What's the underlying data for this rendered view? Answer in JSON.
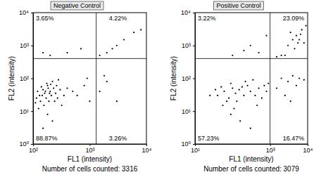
{
  "chart_data": [
    {
      "type": "scatter",
      "title": "Negative Control",
      "x_label": "FL1 (intensity)",
      "y_label": "FL2 (intensity)",
      "footer": "Number of cells counted: 3316",
      "x": [
        130,
        150,
        170,
        180,
        200,
        160,
        140,
        210,
        190,
        230,
        250,
        120,
        175,
        220,
        155,
        270,
        300,
        135,
        185,
        205,
        165,
        240,
        145,
        195,
        260,
        125,
        350,
        400,
        115,
        280,
        320,
        180,
        220,
        150,
        110,
        500,
        600,
        200,
        400,
        150,
        700,
        1500,
        2500,
        4000,
        6000,
        3000,
        8000,
        2000,
        1500,
        2000,
        3000,
        1800,
        800,
        900,
        1000
      ],
      "values": [
        30,
        45,
        25,
        60,
        40,
        35,
        55,
        30,
        20,
        50,
        35,
        40,
        70,
        80,
        15,
        25,
        45,
        20,
        50,
        65,
        40,
        20,
        30,
        35,
        60,
        12,
        30,
        50,
        25,
        90,
        15,
        8,
        5,
        3,
        18,
        40,
        30,
        500,
        600,
        600,
        800,
        500,
        800,
        1500,
        2500,
        1000,
        3000,
        600,
        40,
        80,
        20,
        120,
        60,
        100,
        20
      ],
      "color": "#000000",
      "marker": "dot",
      "log": true,
      "xlim": [
        100,
        10000
      ],
      "ylim": [
        1,
        10000
      ],
      "xticks": [
        {
          "value": 100,
          "label": "10²"
        },
        {
          "value": 1000,
          "label": "10³"
        },
        {
          "value": 10000,
          "label": "10⁴"
        }
      ],
      "yticks": [
        {
          "value": 1,
          "label": "10⁰"
        },
        {
          "value": 10,
          "label": "10¹"
        },
        {
          "value": 100,
          "label": "10²"
        },
        {
          "value": 1000,
          "label": "10³"
        },
        {
          "value": 10000,
          "label": "10⁴"
        }
      ],
      "gates": {
        "x": 1300,
        "y": 400
      },
      "quadrants": {
        "values": [
          3.65,
          4.22,
          88.87,
          3.26
        ],
        "value_labels": [
          "3.65%",
          "4.22%",
          "88.87%",
          "3.26%"
        ]
      }
    },
    {
      "type": "scatter",
      "title": "Positive Control",
      "x_label": "FL1 (intensity)",
      "y_label": "FL2 (intensity)",
      "footer": "Number of cells counted: 3079",
      "x": [
        40,
        60,
        80,
        100,
        120,
        150,
        200,
        250,
        300,
        50,
        70,
        90,
        130,
        180,
        400,
        500,
        600,
        700,
        35,
        55,
        110,
        220,
        350,
        450,
        800,
        900,
        25,
        160,
        300,
        90,
        100,
        300,
        500,
        800,
        200,
        2000,
        3000,
        4000,
        5000,
        6000,
        7000,
        4500,
        3500,
        8000,
        2500,
        5500,
        1500,
        6500,
        9000,
        1500,
        2000,
        3000,
        4000,
        5000,
        2500,
        6000,
        8000,
        3500
      ],
      "values": [
        30,
        40,
        25,
        50,
        35,
        45,
        30,
        60,
        40,
        55,
        20,
        70,
        20,
        55,
        30,
        50,
        25,
        60,
        45,
        15,
        12,
        80,
        90,
        15,
        40,
        70,
        30,
        5,
        3,
        8,
        500,
        1000,
        600,
        2000,
        700,
        500,
        1000,
        1500,
        2000,
        1500,
        3000,
        800,
        2500,
        1200,
        500,
        1200,
        450,
        2200,
        4000,
        50,
        100,
        80,
        120,
        60,
        30,
        100,
        90,
        20
      ],
      "color": "#000000",
      "marker": "dot",
      "log": true,
      "xlim": [
        10,
        10000
      ],
      "ylim": [
        1,
        10000
      ],
      "xticks": [
        {
          "value": 10,
          "label": "10¹"
        },
        {
          "value": 1000,
          "label": "10³"
        },
        {
          "value": 10000,
          "label": "10⁴"
        }
      ],
      "yticks": [
        {
          "value": 1,
          "label": "10⁰"
        },
        {
          "value": 10,
          "label": "10¹"
        },
        {
          "value": 100,
          "label": "10²"
        },
        {
          "value": 1000,
          "label": "10³"
        },
        {
          "value": 10000,
          "label": "10⁴"
        }
      ],
      "gates": {
        "x": 1000,
        "y": 400
      },
      "quadrants": {
        "values": [
          3.22,
          23.09,
          57.23,
          16.47
        ],
        "value_labels": [
          "3.22%",
          "23.09%",
          "57.23%",
          "16.47%"
        ]
      }
    }
  ]
}
